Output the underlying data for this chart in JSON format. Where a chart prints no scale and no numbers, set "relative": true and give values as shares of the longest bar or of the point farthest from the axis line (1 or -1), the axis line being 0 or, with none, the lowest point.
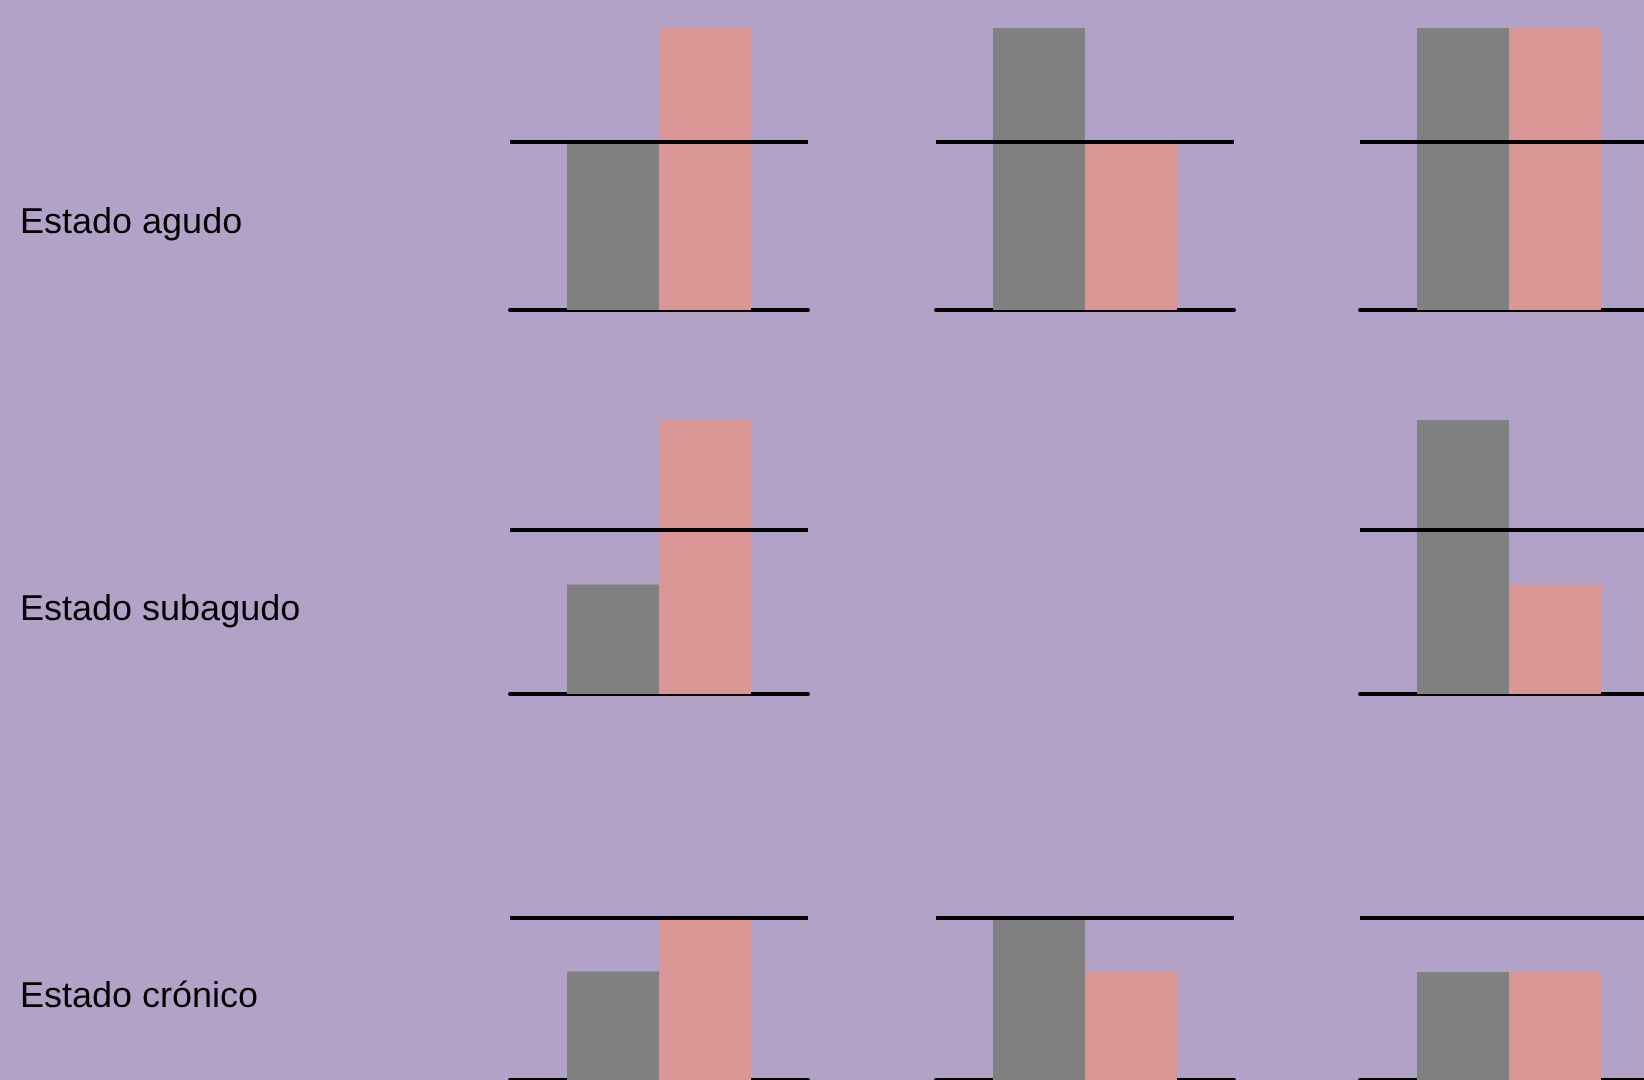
{
  "chart_data": [
    {
      "type": "bar",
      "relative": true,
      "ylabel": "Estado agudo",
      "categories": [
        null
      ],
      "series": [
        {
          "color": "#808080",
          "values": [
            0.6
          ]
        },
        {
          "color": "#d99694",
          "values": [
            1
          ]
        }
      ],
      "ref_lines": [
        {
          "axis": "y",
          "value": 0.6,
          "color": "#000000"
        }
      ]
    },
    {
      "type": "bar",
      "relative": true,
      "categories": [
        null
      ],
      "series": [
        {
          "color": "#808080",
          "values": [
            1
          ]
        },
        {
          "color": "#d99694",
          "values": [
            0.6
          ]
        }
      ],
      "ref_lines": [
        {
          "axis": "y",
          "value": 0.6,
          "color": "#000000"
        }
      ]
    },
    {
      "type": "bar",
      "relative": true,
      "categories": [
        null
      ],
      "series": [
        {
          "color": "#808080",
          "values": [
            1
          ]
        },
        {
          "color": "#d99694",
          "values": [
            1
          ]
        }
      ],
      "ref_lines": [
        {
          "axis": "y",
          "value": 0.6,
          "color": "#000000"
        }
      ]
    },
    {
      "type": "bar",
      "relative": true,
      "ylabel": "Estado subagudo",
      "categories": [
        null
      ],
      "series": [
        {
          "color": "#808080",
          "values": [
            0.4
          ]
        },
        {
          "color": "#d99694",
          "values": [
            1
          ]
        }
      ],
      "ref_lines": [
        {
          "axis": "y",
          "value": 0.6,
          "color": "#000000"
        }
      ]
    },
    {
      "type": "bar",
      "relative": true,
      "categories": [
        null
      ],
      "series": [
        {
          "color": "#808080",
          "values": [
            1
          ]
        },
        {
          "color": "#d99694",
          "values": [
            0.4
          ]
        }
      ],
      "ref_lines": [
        {
          "axis": "y",
          "value": 0.6,
          "color": "#000000"
        }
      ]
    },
    {
      "type": "bar",
      "relative": true,
      "ylabel": "Estado crónico",
      "categories": [
        null
      ],
      "series": [
        {
          "color": "#808080",
          "values": [
            0.67
          ]
        },
        {
          "color": "#d99694",
          "values": [
            1
          ]
        }
      ],
      "ref_lines": [
        {
          "axis": "y",
          "value": 1,
          "color": "#000000"
        }
      ]
    },
    {
      "type": "bar",
      "relative": true,
      "categories": [
        null
      ],
      "series": [
        {
          "color": "#808080",
          "values": [
            1
          ]
        },
        {
          "color": "#d99694",
          "values": [
            0.67
          ]
        }
      ],
      "ref_lines": [
        {
          "axis": "y",
          "value": 1,
          "color": "#000000"
        }
      ]
    },
    {
      "type": "bar",
      "relative": true,
      "categories": [
        null
      ],
      "series": [
        {
          "color": "#808080",
          "values": [
            1
          ]
        },
        {
          "color": "#d99694",
          "values": [
            1
          ]
        }
      ],
      "ref_lines": [
        {
          "axis": "y",
          "value": 1.5,
          "color": "#000000"
        }
      ]
    }
  ]
}
